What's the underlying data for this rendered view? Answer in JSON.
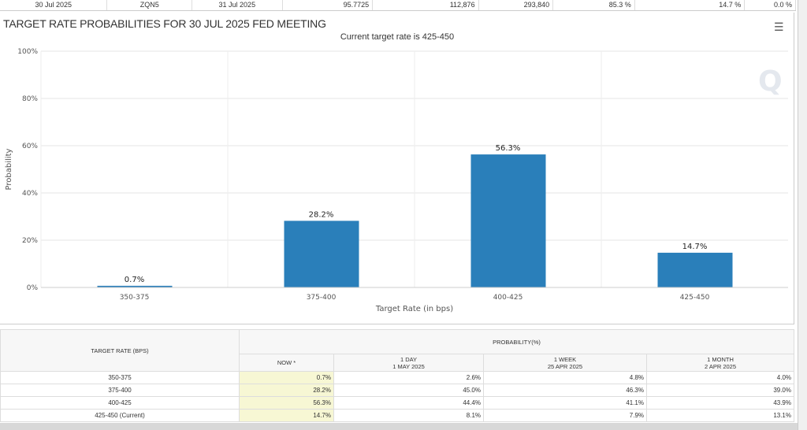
{
  "top_row": [
    "30 Jul 2025",
    "ZQN5",
    "31 Jul 2025",
    "95.7725",
    "112,876",
    "293,840",
    "85.3 %",
    "14.7 %",
    "0.0 %"
  ],
  "panel": {
    "title": "TARGET RATE PROBABILITIES FOR 30 JUL 2025 FED MEETING",
    "subtitle": "Current target rate is 425-450",
    "menu_icon": "hamburger-icon"
  },
  "chart_data": {
    "type": "bar",
    "title": "TARGET RATE PROBABILITIES FOR 30 JUL 2025 FED MEETING",
    "subtitle": "Current target rate is 425-450",
    "categories": [
      "350-375",
      "375-400",
      "400-425",
      "425-450"
    ],
    "values": [
      0.7,
      28.2,
      56.3,
      14.7
    ],
    "data_labels": [
      "0.7%",
      "28.2%",
      "56.3%",
      "14.7%"
    ],
    "xlabel": "Target Rate (in bps)",
    "ylabel": "Probability",
    "ylim": [
      0,
      100
    ],
    "yticks": [
      "0%",
      "20%",
      "40%",
      "60%",
      "80%",
      "100%"
    ],
    "grid": true,
    "color": "#2a7fba"
  },
  "table": {
    "col_header": "TARGET RATE (BPS)",
    "group_header": "PROBABILITY(%)",
    "sub_headers": [
      {
        "l1": "NOW *",
        "l2": ""
      },
      {
        "l1": "1 DAY",
        "l2": "1 MAY 2025"
      },
      {
        "l1": "1 WEEK",
        "l2": "25 APR 2025"
      },
      {
        "l1": "1 MONTH",
        "l2": "2 APR 2025"
      }
    ],
    "rows": [
      [
        "350-375",
        "0.7%",
        "2.6%",
        "4.8%",
        "4.0%"
      ],
      [
        "375-400",
        "28.2%",
        "45.0%",
        "46.3%",
        "39.0%"
      ],
      [
        "400-425",
        "56.3%",
        "44.4%",
        "41.1%",
        "43.9%"
      ],
      [
        "425-450 (Current)",
        "14.7%",
        "8.1%",
        "7.9%",
        "13.1%"
      ]
    ]
  }
}
